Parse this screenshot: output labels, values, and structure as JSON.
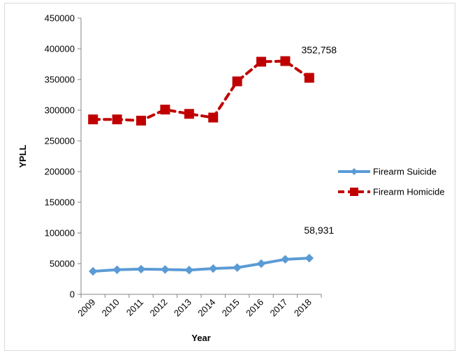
{
  "chart_data": {
    "type": "line",
    "xlabel": "Year",
    "ylabel": "YPLL",
    "ylim": [
      0,
      450000
    ],
    "yticks": [
      0,
      50000,
      100000,
      150000,
      200000,
      250000,
      300000,
      350000,
      400000,
      450000
    ],
    "categories": [
      "2009",
      "2010",
      "2011",
      "2012",
      "2013",
      "2014",
      "2015",
      "2016",
      "2017",
      "2018"
    ],
    "grid": false,
    "legend_position": "right",
    "series": [
      {
        "name": "Firearm Suicide",
        "color": "#5b9bd5",
        "marker": "diamond",
        "line_style": "solid",
        "values": [
          37500,
          40000,
          41000,
          40500,
          39500,
          42000,
          43500,
          50000,
          57000,
          58931
        ]
      },
      {
        "name": "Firearm Homicide",
        "color": "#c00000",
        "marker": "square",
        "line_style": "dashed",
        "values": [
          285000,
          285000,
          283000,
          301000,
          294000,
          288000,
          347000,
          379000,
          380000,
          352758
        ]
      }
    ],
    "annotations": [
      {
        "series": "Firearm Homicide",
        "text": "352,758"
      },
      {
        "series": "Firearm Suicide",
        "text": "58,931"
      }
    ]
  }
}
